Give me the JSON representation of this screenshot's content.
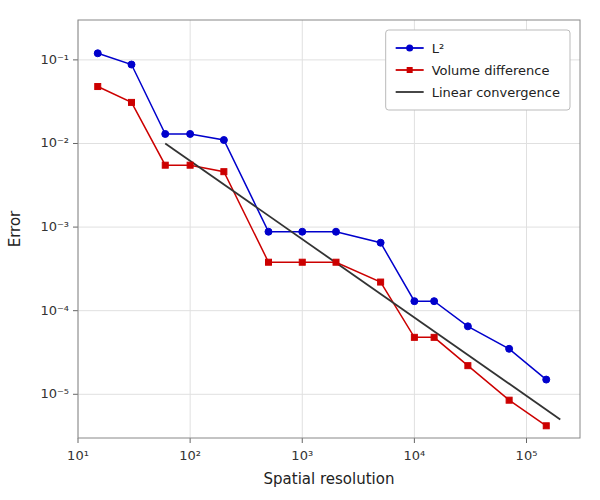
{
  "chart_data": {
    "type": "line",
    "xlabel": "Spatial resolution",
    "ylabel": "Error",
    "log": true,
    "grid": true,
    "legend": "upper right",
    "xlim": [
      10,
      300000
    ],
    "ylim": [
      3e-06,
      0.3
    ],
    "xticks": [
      {
        "value": 10,
        "label": "10¹"
      },
      {
        "value": 100,
        "label": "10²"
      },
      {
        "value": 1000,
        "label": "10³"
      },
      {
        "value": 10000,
        "label": "10⁴"
      },
      {
        "value": 100000,
        "label": "10⁵"
      }
    ],
    "yticks": [
      {
        "value": 1e-05,
        "label": "10⁻⁵"
      },
      {
        "value": 0.0001,
        "label": "10⁻⁴"
      },
      {
        "value": 0.001,
        "label": "10⁻³"
      },
      {
        "value": 0.01,
        "label": "10⁻²"
      },
      {
        "value": 0.1,
        "label": "10⁻¹"
      }
    ],
    "series": [
      {
        "name": "L²",
        "color": "#0000cc",
        "marker": "circle",
        "line_style": "solid",
        "x": [
          15,
          30,
          60,
          100,
          200,
          500,
          1000,
          2000,
          5000,
          10000,
          15000,
          30000,
          70000,
          150000
        ],
        "values": [
          0.12,
          0.088,
          0.013,
          0.013,
          0.011,
          0.00088,
          0.00088,
          0.00088,
          0.00065,
          0.00013,
          0.00013,
          6.5e-05,
          3.5e-05,
          1.5e-05
        ]
      },
      {
        "name": "Volume difference",
        "color": "#cc0000",
        "marker": "square",
        "line_style": "solid",
        "x": [
          15,
          30,
          60,
          100,
          200,
          500,
          1000,
          2000,
          5000,
          10000,
          15000,
          30000,
          70000,
          150000
        ],
        "values": [
          0.048,
          0.031,
          0.0055,
          0.0055,
          0.0046,
          0.00038,
          0.00038,
          0.00038,
          0.00022,
          4.8e-05,
          4.8e-05,
          2.2e-05,
          8.5e-06,
          4.2e-06
        ]
      },
      {
        "name": "Linear convergence",
        "color": "#333333",
        "marker": "none",
        "line_style": "solid",
        "x": [
          60,
          200000
        ],
        "values": [
          0.01,
          5e-06
        ]
      }
    ]
  }
}
